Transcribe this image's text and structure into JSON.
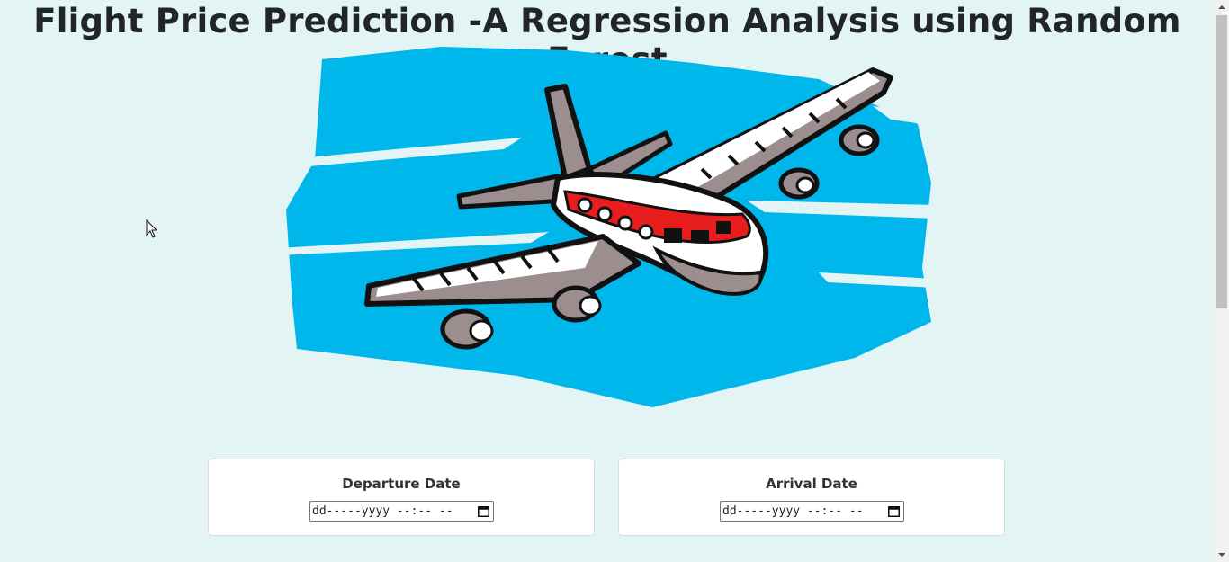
{
  "header": {
    "title": "Flight Price Prediction -A Regression Analysis using Random Forest"
  },
  "hero": {
    "image": "airplane-illustration",
    "colors": {
      "sky": "#00b7eb",
      "body": "#ffffff",
      "wing": "#9c8e8e",
      "stripe": "#e81d1d",
      "outline": "#111111"
    }
  },
  "form": {
    "departure": {
      "label": "Departure Date",
      "placeholder": "dd-----yyyy --:-- --"
    },
    "arrival": {
      "label": "Arrival Date",
      "placeholder": "dd-----yyyy --:-- --"
    }
  },
  "icons": {
    "calendar": "calendar-icon",
    "cursor": "mouse-pointer-icon"
  }
}
